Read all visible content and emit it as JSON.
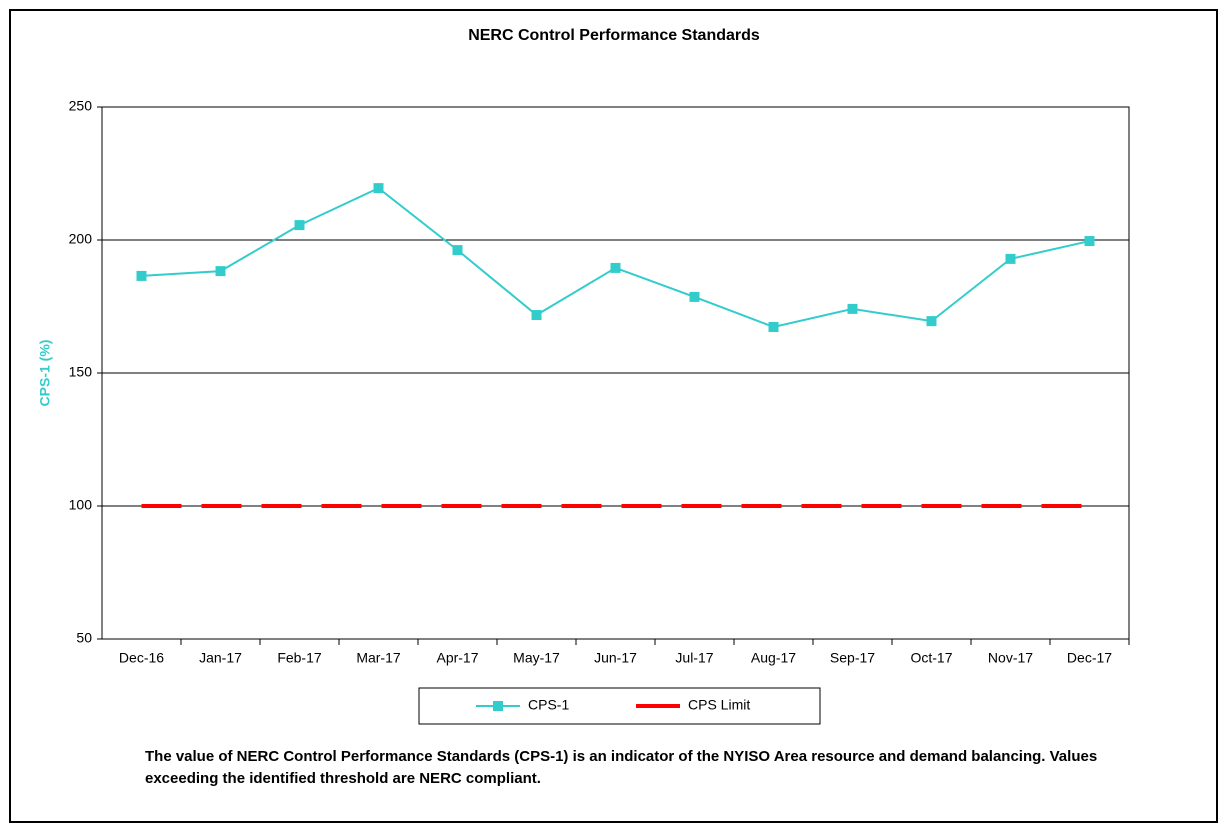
{
  "chart_data": {
    "type": "line",
    "title": "NERC Control Performance Standards",
    "y_label": "CPS-1 (%)",
    "y_label_color": "#33cccc",
    "categories": [
      "Dec-16",
      "Jan-17",
      "Feb-17",
      "Mar-17",
      "Apr-17",
      "May-17",
      "Jun-17",
      "Jul-17",
      "Aug-17",
      "Sep-17",
      "Oct-17",
      "Nov-17",
      "Dec-17"
    ],
    "series": [
      {
        "name": "CPS-1",
        "color": "#33cccc",
        "marker": "square",
        "dashed": false,
        "values": [
          186.5,
          188.3,
          205.6,
          219.5,
          196.2,
          171.8,
          189.5,
          178.6,
          167.3,
          174.1,
          169.5,
          192.9,
          199.6
        ]
      },
      {
        "name": "CPS Limit",
        "color": "#ff0000",
        "marker": "none",
        "dashed": true,
        "values": [
          100,
          100,
          100,
          100,
          100,
          100,
          100,
          100,
          100,
          100,
          100,
          100,
          100
        ]
      }
    ],
    "ylim": [
      50,
      250
    ],
    "yticks": [
      50,
      100,
      150,
      200,
      250
    ],
    "grid": true,
    "legend": "bottom",
    "note": "The value of NERC Control Performance Standards (CPS-1) is an indicator of the NYISO Area resource and demand balancing. Values exceeding the identified threshold are NERC compliant."
  }
}
